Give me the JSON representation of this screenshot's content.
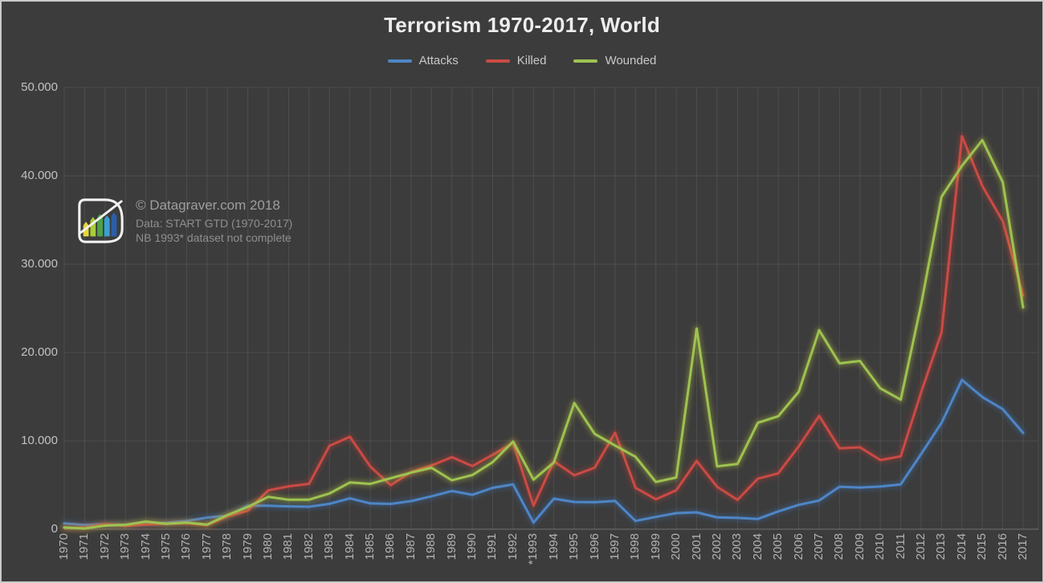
{
  "frame": {
    "background": "#3c3c3c",
    "border_color": "#c9c9c9",
    "gridline_color": "rgba(255,255,255,0.09)",
    "axis_color": "rgba(255,255,255,0.28)"
  },
  "header": {
    "title": "Terrorism 1970-2017, World"
  },
  "watermark": {
    "line1": "© Datagraver.com 2018",
    "line2": "Data: START GTD (1970-2017)",
    "line3": "NB 1993* dataset not complete",
    "logo": "datagraver-logo"
  },
  "chart_data": {
    "type": "line",
    "title": "Terrorism 1970-2017, World",
    "xlabel": "",
    "ylabel": "",
    "ylim": [
      0,
      50000
    ],
    "grid": true,
    "legend_position": "top",
    "yticks": {
      "values": [
        0,
        10000,
        20000,
        30000,
        40000,
        50000
      ],
      "labels": [
        "0",
        "10.000",
        "20.000",
        "30.000",
        "40.000",
        "50.000"
      ]
    },
    "categories": [
      "1970",
      "1971",
      "1972",
      "1973",
      "1974",
      "1975",
      "1976",
      "1977",
      "1978",
      "1979",
      "1980",
      "1981",
      "1982",
      "1983",
      "1984",
      "1985",
      "1986",
      "1987",
      "1988",
      "1989",
      "1990",
      "1991",
      "1992",
      "*1993",
      "1994",
      "1995",
      "1996",
      "1997",
      "1998",
      "1999",
      "2000",
      "2001",
      "2002",
      "2003",
      "2004",
      "2005",
      "2006",
      "2007",
      "2008",
      "2009",
      "2010",
      "2011",
      "2012",
      "2013",
      "2014",
      "2015",
      "2016",
      "2017"
    ],
    "note": "*1993 dataset not complete",
    "series": [
      {
        "name": "Attacks",
        "color": "#4e86c6",
        "glow": "#3f74b4",
        "values": [
          651,
          471,
          568,
          473,
          581,
          740,
          923,
          1319,
          1526,
          2662,
          2662,
          2586,
          2544,
          2870,
          3495,
          2915,
          2860,
          3183,
          3721,
          4324,
          3887,
          4683,
          5071,
          750,
          3456,
          3081,
          3058,
          3197,
          934,
          1395,
          1814,
          1906,
          1333,
          1278,
          1166,
          2017,
          2758,
          3242,
          4805,
          4721,
          4826,
          5076,
          8522,
          12036,
          16903,
          14965,
          13587,
          10900
        ]
      },
      {
        "name": "Killed",
        "color": "#ca4b45",
        "glow": "#c23a32",
        "values": [
          171,
          173,
          566,
          370,
          539,
          617,
          674,
          456,
          1459,
          2100,
          4400,
          4851,
          5136,
          9444,
          10450,
          7094,
          4976,
          6482,
          7208,
          8152,
          7148,
          8429,
          9742,
          2660,
          7690,
          6104,
          6960,
          10924,
          4688,
          3393,
          4405,
          7729,
          4805,
          3317,
          5716,
          6331,
          9380,
          12824,
          9160,
          9273,
          7827,
          8246,
          15497,
          22273,
          44490,
          38853,
          34871,
          26445
        ]
      },
      {
        "name": "Wounded",
        "color": "#9dc351",
        "glow": "#bcc63a",
        "values": [
          192,
          82,
          409,
          495,
          865,
          617,
          755,
          518,
          1600,
          2506,
          3668,
          3337,
          3342,
          4047,
          5291,
          5130,
          5774,
          6400,
          6958,
          5539,
          6129,
          7591,
          9930,
          5613,
          7551,
          14290,
          10795,
          9474,
          8201,
          5341,
          5851,
          22719,
          7118,
          7382,
          12053,
          12793,
          15550,
          22524,
          18770,
          19047,
          15947,
          14660,
          25445,
          37625,
          41128,
          44043,
          39297,
          25100
        ]
      }
    ]
  }
}
